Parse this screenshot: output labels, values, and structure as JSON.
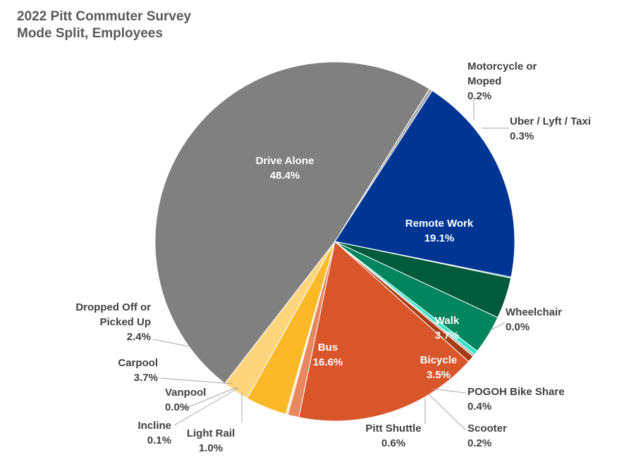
{
  "title_line1": "2022 Pitt Commuter Survey",
  "title_line2": "Mode Split, Employees",
  "chart_data": {
    "type": "pie",
    "title": "2022 Pitt Commuter Survey Mode Split, Employees",
    "slices": [
      {
        "key": "motorcycle",
        "label_lines": [
          "Motorcycle or",
          "Moped"
        ],
        "value_label": "0.2%",
        "value": 0.2,
        "color": "#d9d9d9"
      },
      {
        "key": "uber",
        "label_lines": [
          "Uber / Lyft / Taxi"
        ],
        "value_label": "0.3%",
        "value": 0.3,
        "color": "#a6a6a6"
      },
      {
        "key": "remote",
        "label_lines": [
          "Remote Work"
        ],
        "value_label": "19.1%",
        "value": 19.1,
        "color": "#003594"
      },
      {
        "key": "wheelchair",
        "label_lines": [
          "Wheelchair"
        ],
        "value_label": "0.0%",
        "value": 0.0,
        "color": "#00876c"
      },
      {
        "key": "walk",
        "label_lines": [
          "Walk"
        ],
        "value_label": "3.7%",
        "value": 3.7,
        "color": "#005a3c"
      },
      {
        "key": "bicycle",
        "label_lines": [
          "Bicycle"
        ],
        "value_label": "3.5%",
        "value": 3.5,
        "color": "#00855f"
      },
      {
        "key": "pogoh",
        "label_lines": [
          "POGOH Bike Share"
        ],
        "value_label": "0.4%",
        "value": 0.4,
        "color": "#2ee6c6"
      },
      {
        "key": "scooter",
        "label_lines": [
          "Scooter"
        ],
        "value_label": "0.2%",
        "value": 0.2,
        "color": "#b0b0b0"
      },
      {
        "key": "shuttle",
        "label_lines": [
          "Pitt Shuttle"
        ],
        "value_label": "0.6%",
        "value": 0.6,
        "color": "#a63c12"
      },
      {
        "key": "bus",
        "label_lines": [
          "Bus"
        ],
        "value_label": "16.6%",
        "value": 16.6,
        "color": "#d9562b"
      },
      {
        "key": "lightrail",
        "label_lines": [
          "Light Rail"
        ],
        "value_label": "1.0%",
        "value": 1.0,
        "color": "#e9875e"
      },
      {
        "key": "incline",
        "label_lines": [
          "Incline"
        ],
        "value_label": "0.1%",
        "value": 0.1,
        "color": "#f1b48f"
      },
      {
        "key": "vanpool",
        "label_lines": [
          "Vanpool"
        ],
        "value_label": "0.0%",
        "value": 0.0,
        "color": "#f7c86b"
      },
      {
        "key": "carpool",
        "label_lines": [
          "Carpool"
        ],
        "value_label": "3.7%",
        "value": 3.7,
        "color": "#fbb927"
      },
      {
        "key": "dropped",
        "label_lines": [
          "Dropped Off or",
          "Picked Up"
        ],
        "value_label": "2.4%",
        "value": 2.4,
        "color": "#fdd57c"
      },
      {
        "key": "drive",
        "label_lines": [
          "Drive Alone"
        ],
        "value_label": "48.4%",
        "value": 48.4,
        "color": "#808080"
      }
    ]
  }
}
